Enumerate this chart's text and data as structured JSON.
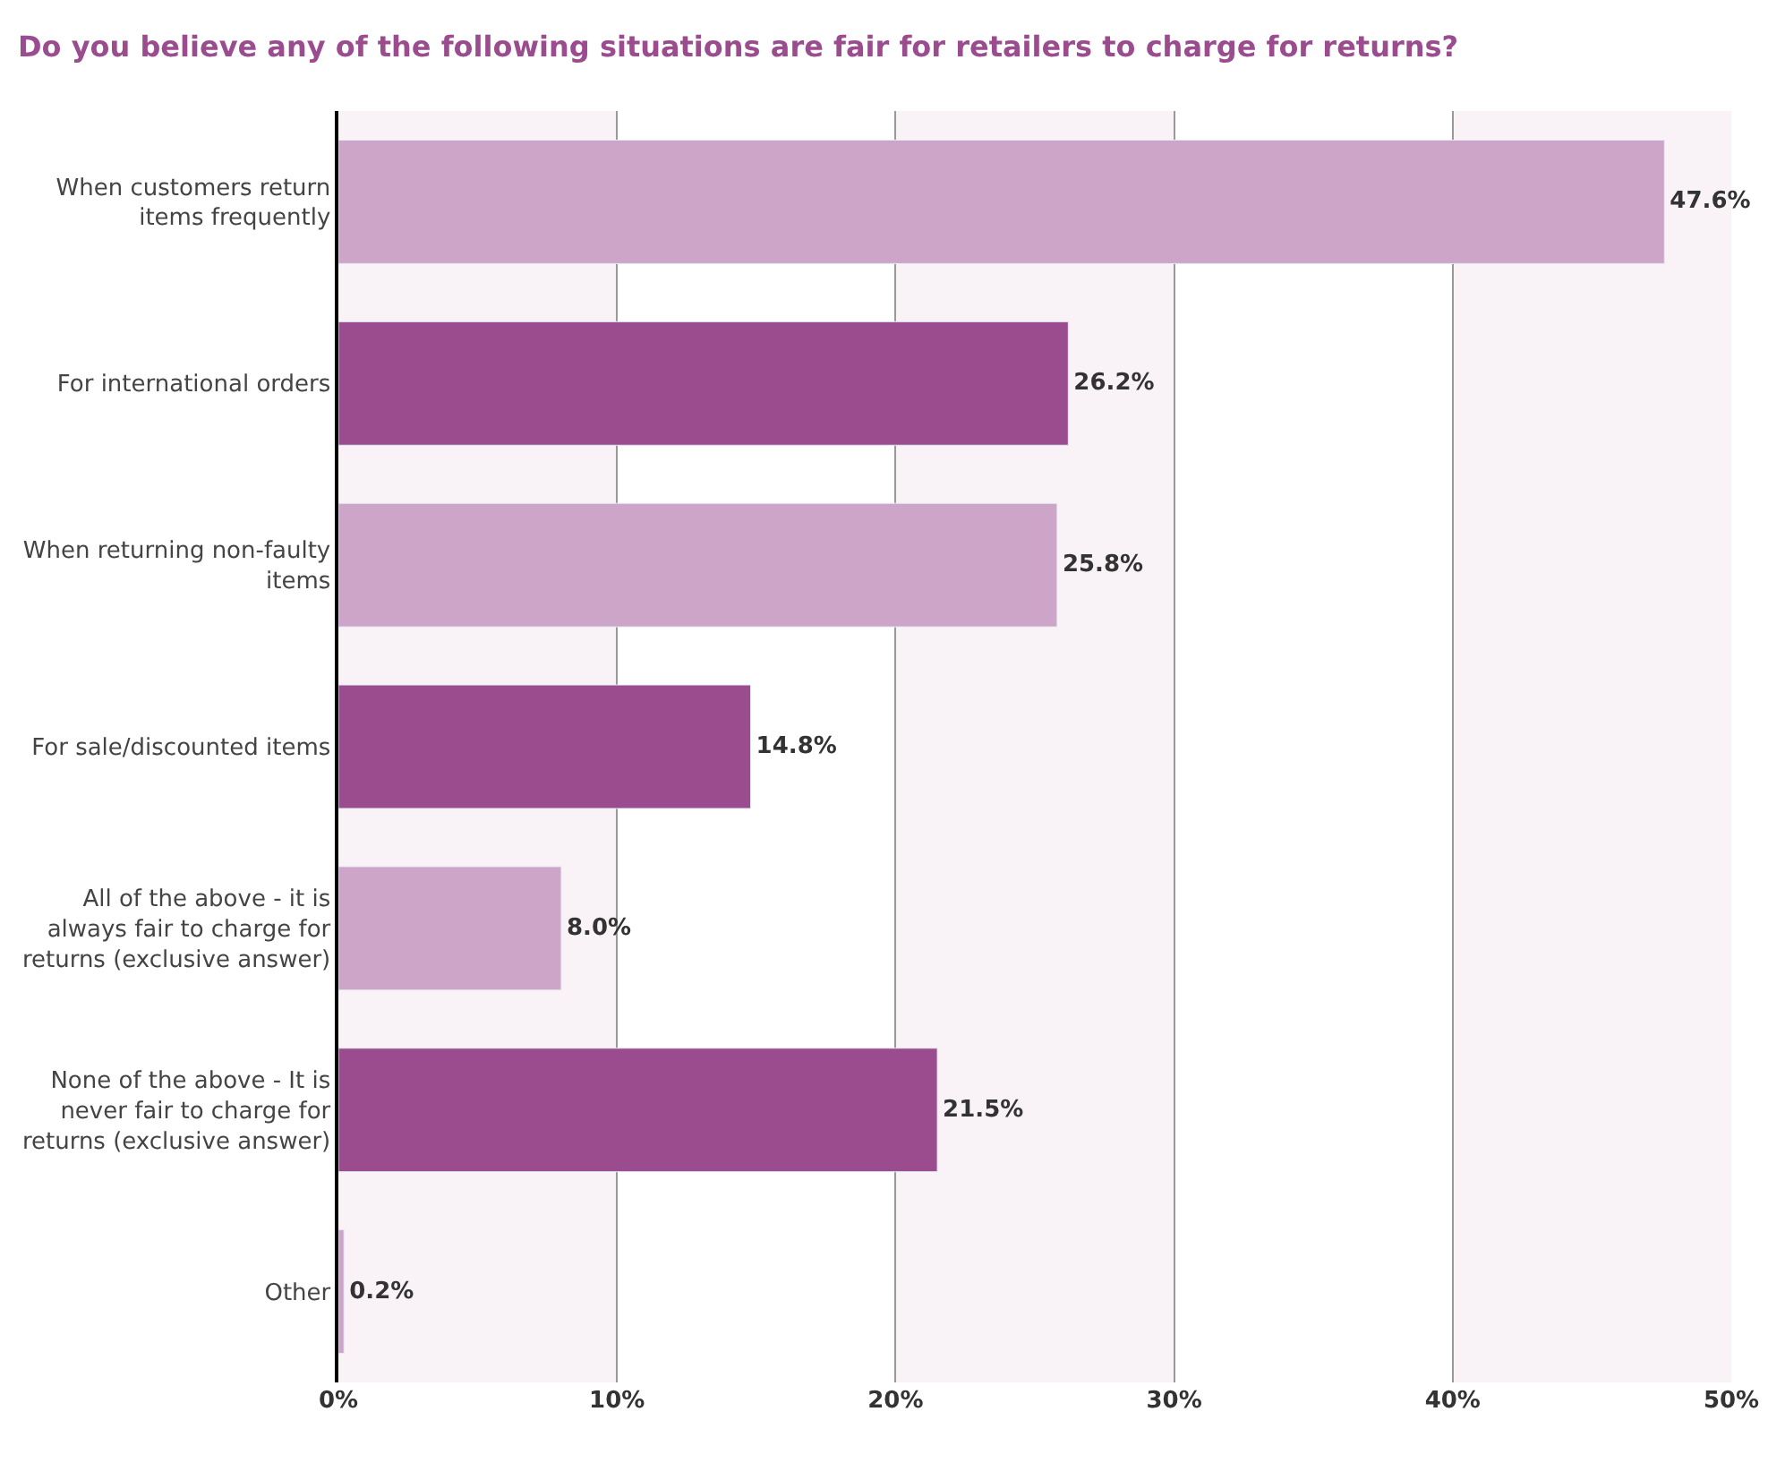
{
  "chart_data": {
    "type": "bar",
    "orientation": "horizontal",
    "title": "Do you believe any of the following situations are fair for retailers to charge for returns?",
    "categories": [
      "When customers return items frequently",
      "For international orders",
      "When returning non-faulty items",
      "For sale/discounted items",
      "All of the above - it is always fair to charge for returns (exclusive answer)",
      "None of the above - It is never fair to charge for returns (exclusive answer)",
      "Other"
    ],
    "values": [
      47.6,
      26.2,
      25.8,
      14.8,
      8.0,
      21.5,
      0.2
    ],
    "value_labels": [
      "47.6%",
      "26.2%",
      "25.8%",
      "14.8%",
      "8.0%",
      "21.5%",
      "0.2%"
    ],
    "colors": [
      "#cda5c8",
      "#9a4c8e",
      "#cda5c8",
      "#9a4c8e",
      "#cda5c8",
      "#9a4c8e",
      "#cda5c8"
    ],
    "xlim": [
      0,
      50
    ],
    "xticks": [
      {
        "value": 0,
        "label": "0%"
      },
      {
        "value": 10,
        "label": "10%"
      },
      {
        "value": 20,
        "label": "20%"
      },
      {
        "value": 30,
        "label": "30%"
      },
      {
        "value": 40,
        "label": "40%"
      },
      {
        "value": 50,
        "label": "50%"
      }
    ],
    "bands": [
      {
        "axis": "x",
        "from": 0,
        "to": 10,
        "color": "#f9f3f7"
      },
      {
        "axis": "x",
        "from": 20,
        "to": 30,
        "color": "#f9f3f7"
      },
      {
        "axis": "x",
        "from": 40,
        "to": 50,
        "color": "#f9f3f7"
      }
    ],
    "grid": "x"
  }
}
